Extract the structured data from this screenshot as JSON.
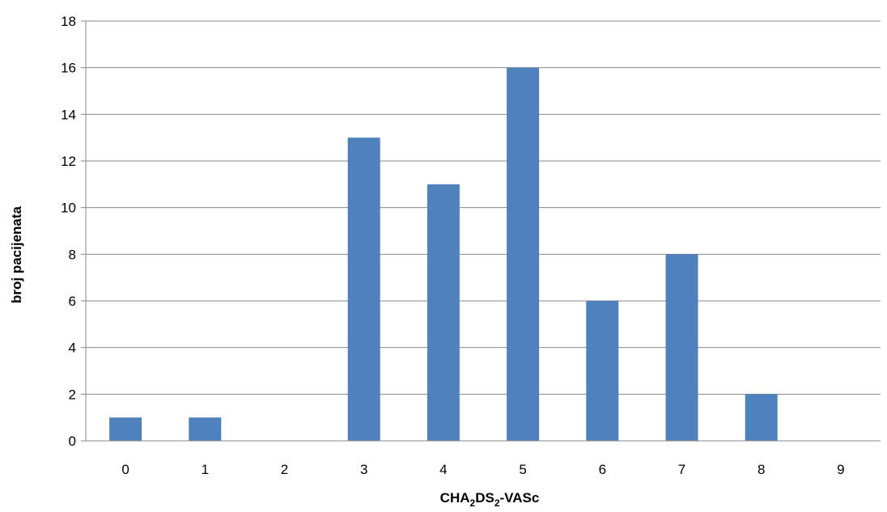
{
  "chart_data": {
    "type": "bar",
    "categories": [
      "0",
      "1",
      "2",
      "3",
      "4",
      "5",
      "6",
      "7",
      "8",
      "9"
    ],
    "values": [
      1,
      1,
      0,
      13,
      11,
      16,
      6,
      8,
      2,
      0
    ],
    "title": "",
    "xlabel": {
      "main": "CHA",
      "sub1": "2",
      "mid": "DS",
      "sub2": "2",
      "tail": "-VASc"
    },
    "ylabel": "broj pacijenata",
    "ylim": [
      0,
      18
    ],
    "ytick_step": 2,
    "grid": true,
    "legend": "none",
    "bar_color": "#4F81BD",
    "grid_color": "#878787"
  }
}
